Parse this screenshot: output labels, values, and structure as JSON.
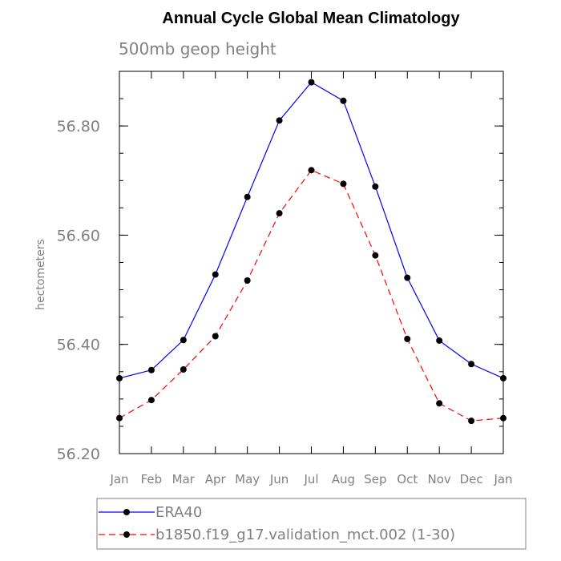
{
  "chart_data": {
    "type": "line",
    "title": "Annual Cycle Global Mean Climatology",
    "subtitle": "500mb geop height",
    "xlabel": "",
    "ylabel": "hectometers",
    "categories": [
      "Jan",
      "Feb",
      "Mar",
      "Apr",
      "May",
      "Jun",
      "Jul",
      "Aug",
      "Sep",
      "Oct",
      "Nov",
      "Dec",
      "Jan"
    ],
    "ylim": [
      56.2,
      56.9
    ],
    "yticks": [
      "56.20",
      "56.40",
      "56.60",
      "56.80"
    ],
    "series": [
      {
        "name": "ERA40",
        "color": "#0000ff",
        "dash": "solid",
        "values": [
          56.338,
          56.353,
          56.408,
          56.528,
          56.67,
          56.81,
          56.88,
          56.846,
          56.689,
          56.522,
          56.407,
          56.364,
          56.338
        ]
      },
      {
        "name": "b1850.f19_g17.validation_mct.002 (1-30)",
        "color": "#ff0000",
        "dash": "dashed",
        "values": [
          56.265,
          56.298,
          56.354,
          56.415,
          56.517,
          56.64,
          56.719,
          56.694,
          56.563,
          56.41,
          56.292,
          56.26,
          56.265
        ]
      }
    ],
    "grid": false,
    "legend": "bottom"
  }
}
